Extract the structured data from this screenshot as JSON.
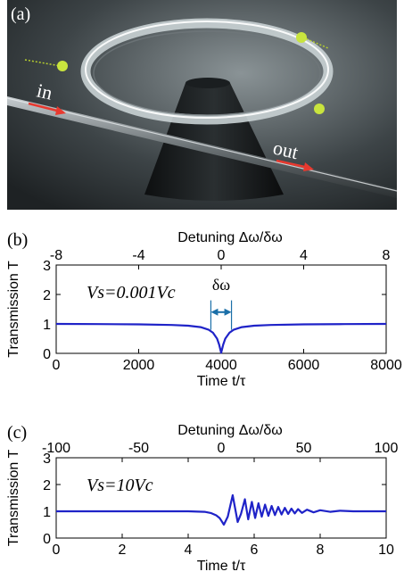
{
  "panel_a": {
    "label": "(a)",
    "in_label": "in",
    "out_label": "out",
    "colors": {
      "background": "#2f3436",
      "ring": "#d7dde0",
      "arrow": "#e8392f",
      "particle": "#c8e23c"
    }
  },
  "chart_data": [
    {
      "type": "line",
      "panel_label": "(b)",
      "title": "",
      "xlabel": "Time t/τ",
      "x2label": "Detuning Δω/δω",
      "ylabel": "Transmission T",
      "xlim": [
        0,
        8000
      ],
      "x2lim": [
        -8,
        8
      ],
      "ylim": [
        0,
        3
      ],
      "xticks": [
        0,
        2000,
        4000,
        6000,
        8000
      ],
      "x2ticks": [
        -8,
        -4,
        0,
        4,
        8
      ],
      "yticks": [
        0,
        1,
        2,
        3
      ],
      "annotation": "Vs=0.001Vc",
      "width_label": "δω",
      "series": [
        {
          "color": "#1f23c8",
          "x": [
            0,
            1000,
            2000,
            2800,
            3200,
            3500,
            3700,
            3800,
            3900,
            3950,
            4000,
            4050,
            4100,
            4200,
            4300,
            4500,
            4800,
            5200,
            6000,
            7000,
            8000
          ],
          "y": [
            1.0,
            0.995,
            0.985,
            0.965,
            0.94,
            0.89,
            0.8,
            0.7,
            0.5,
            0.3,
            0.02,
            0.3,
            0.5,
            0.7,
            0.8,
            0.89,
            0.94,
            0.965,
            0.985,
            0.995,
            1.0
          ]
        }
      ]
    },
    {
      "type": "line",
      "panel_label": "(c)",
      "title": "",
      "xlabel": "Time t/τ",
      "x2label": "Detuning Δω/δω",
      "ylabel": "Transmission T",
      "xlim": [
        0,
        10
      ],
      "x2lim": [
        -100,
        100
      ],
      "ylim": [
        0,
        3
      ],
      "xticks": [
        0,
        2,
        4,
        6,
        8,
        10
      ],
      "x2ticks": [
        -100,
        -50,
        0,
        50,
        100
      ],
      "yticks": [
        0,
        1,
        2,
        3
      ],
      "annotation": "Vs=10Vc",
      "series": [
        {
          "color": "#1f23c8",
          "x": [
            0,
            4.0,
            4.5,
            4.7,
            4.85,
            4.95,
            5.0,
            5.08,
            5.2,
            5.35,
            5.5,
            5.6,
            5.72,
            5.82,
            5.93,
            6.03,
            6.13,
            6.23,
            6.33,
            6.43,
            6.53,
            6.63,
            6.73,
            6.83,
            6.93,
            7.03,
            7.13,
            7.23,
            7.33,
            7.45,
            7.6,
            7.8,
            8.0,
            8.3,
            8.6,
            9.0,
            10.0
          ],
          "y": [
            1.0,
            1.0,
            0.98,
            0.93,
            0.85,
            0.75,
            0.66,
            0.5,
            0.8,
            1.6,
            0.6,
            0.9,
            1.45,
            0.7,
            1.35,
            0.75,
            1.3,
            0.8,
            1.25,
            0.83,
            1.2,
            0.86,
            1.16,
            0.88,
            1.13,
            0.9,
            1.1,
            0.92,
            1.08,
            0.94,
            1.06,
            0.96,
            1.04,
            0.98,
            1.02,
            1.0,
            1.0
          ]
        }
      ]
    }
  ]
}
